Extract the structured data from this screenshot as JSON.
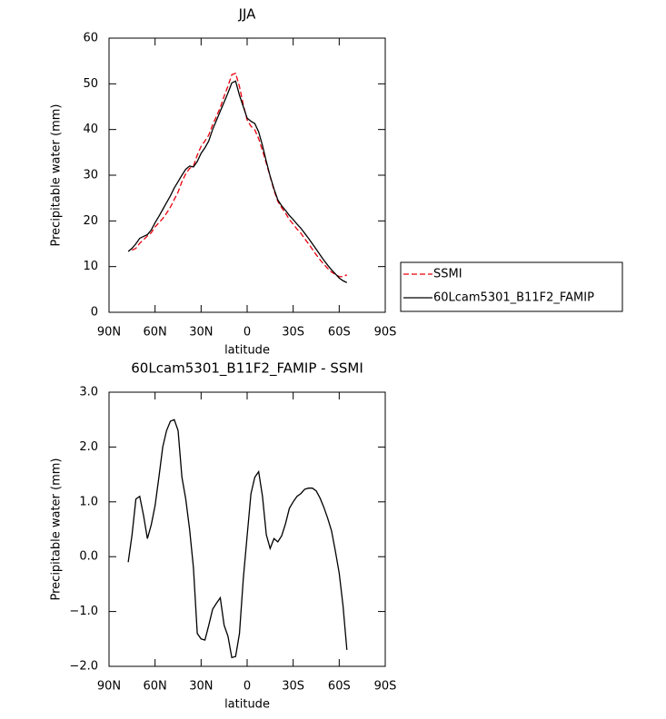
{
  "chart_data": [
    {
      "type": "line",
      "title": "JJA",
      "xlabel": "latitude",
      "ylabel": "Precipitable water (mm)",
      "x": [
        77.5,
        75,
        72.5,
        70,
        67.5,
        65,
        62.5,
        60,
        57.5,
        55,
        52.5,
        50,
        47.5,
        45,
        42.5,
        40,
        37.5,
        35,
        32.5,
        30,
        27.5,
        25,
        22.5,
        20,
        17.5,
        15,
        12.5,
        10,
        7.5,
        5,
        2.5,
        0,
        -2.5,
        -5,
        -7.5,
        -10,
        -12.5,
        -15,
        -17.5,
        -20,
        -22.5,
        -25,
        -27.5,
        -30,
        -32.5,
        -35,
        -37.5,
        -40,
        -42.5,
        -45,
        -47.5,
        -50,
        -52.5,
        -55,
        -57.5,
        -60,
        -62.5,
        -65
      ],
      "xlim": [
        90,
        -90
      ],
      "xticks": [
        {
          "value": 90,
          "label": "90N"
        },
        {
          "value": 60,
          "label": "60N"
        },
        {
          "value": 30,
          "label": "30N"
        },
        0,
        {
          "value": -30,
          "label": "30S"
        },
        {
          "value": -60,
          "label": "60S"
        },
        {
          "value": -90,
          "label": "90S"
        }
      ],
      "ylim": [
        0,
        60
      ],
      "yticks": [
        0,
        10,
        20,
        30,
        40,
        50,
        60
      ],
      "legend": "outside-right",
      "series": [
        {
          "name": "SSMI",
          "color": "#e8000b",
          "line_style": "dashed",
          "values": [
            null,
            13.6,
            14.0,
            15.1,
            15.9,
            16.7,
            17.4,
            18.7,
            19.6,
            20.5,
            21.7,
            23.0,
            24.7,
            26.3,
            28.6,
            30.3,
            31.5,
            32.0,
            34.4,
            36.3,
            37.5,
            38.8,
            41.0,
            42.9,
            44.8,
            47.3,
            49.5,
            52.0,
            52.3,
            49.4,
            45.4,
            42.1,
            40.7,
            39.9,
            38.0,
            35.4,
            32.6,
            29.7,
            26.7,
            24.3,
            22.9,
            21.7,
            20.3,
            19.3,
            18.2,
            17.3,
            16.1,
            15.0,
            13.8,
            12.6,
            11.5,
            10.5,
            9.6,
            8.8,
            8.3,
            7.8,
            7.8,
            8.2
          ]
        },
        {
          "name": "60Lcam5301_B11F2_FAMIP",
          "color": "#000000",
          "line_style": "solid",
          "values": [
            13.3,
            14.0,
            15.0,
            16.2,
            16.6,
            17.0,
            18.0,
            19.6,
            21.0,
            22.5,
            24.0,
            25.5,
            27.2,
            28.6,
            30.0,
            31.3,
            32.0,
            31.8,
            33.0,
            34.8,
            36.0,
            37.5,
            40.0,
            42.0,
            44.0,
            46.0,
            48.0,
            50.2,
            50.6,
            47.5,
            45.0,
            42.5,
            41.8,
            41.3,
            39.5,
            36.5,
            33.0,
            29.8,
            27.0,
            24.6,
            23.3,
            22.3,
            21.2,
            20.3,
            19.3,
            18.4,
            17.3,
            16.2,
            15.0,
            13.8,
            12.6,
            11.4,
            10.3,
            9.3,
            8.4,
            7.5,
            6.9,
            6.5
          ]
        }
      ]
    },
    {
      "type": "line",
      "title": "60Lcam5301_B11F2_FAMIP - SSMI",
      "xlabel": "latitude",
      "ylabel": "Precipitable water (mm)",
      "x": [
        77.5,
        75,
        72.5,
        70,
        67.5,
        65,
        62.5,
        60,
        57.5,
        55,
        52.5,
        50,
        47.5,
        45,
        42.5,
        40,
        37.5,
        35,
        32.5,
        30,
        27.5,
        25,
        22.5,
        20,
        17.5,
        15,
        12.5,
        10,
        7.5,
        5,
        2.5,
        0,
        -2.5,
        -5,
        -7.5,
        -10,
        -12.5,
        -15,
        -17.5,
        -20,
        -22.5,
        -25,
        -27.5,
        -30,
        -32.5,
        -35,
        -37.5,
        -40,
        -42.5,
        -45,
        -47.5,
        -50,
        -52.5,
        -55,
        -57.5,
        -60,
        -62.5,
        -65
      ],
      "xlim": [
        90,
        -90
      ],
      "xticks": [
        {
          "value": 90,
          "label": "90N"
        },
        {
          "value": 60,
          "label": "60N"
        },
        {
          "value": 30,
          "label": "30N"
        },
        0,
        {
          "value": -30,
          "label": "30S"
        },
        {
          "value": -60,
          "label": "60S"
        },
        {
          "value": -90,
          "label": "90S"
        }
      ],
      "ylim": [
        -2,
        3
      ],
      "yticks": [
        {
          "value": -2,
          "label": "−2.0"
        },
        {
          "value": -1,
          "label": "−1.0"
        },
        {
          "value": 0,
          "label": "0.0"
        },
        {
          "value": 1,
          "label": "1.0"
        },
        {
          "value": 2,
          "label": "2.0"
        },
        {
          "value": 3,
          "label": "3.0"
        }
      ],
      "color": "#000000",
      "values": [
        -0.1,
        0.4,
        1.05,
        1.1,
        0.75,
        0.33,
        0.58,
        0.93,
        1.45,
        2.0,
        2.3,
        2.47,
        2.5,
        2.3,
        1.45,
        1.05,
        0.5,
        -0.2,
        -1.4,
        -1.5,
        -1.52,
        -1.25,
        -0.96,
        -0.85,
        -0.75,
        -1.25,
        -1.45,
        -1.84,
        -1.82,
        -1.4,
        -0.4,
        0.38,
        1.15,
        1.45,
        1.55,
        1.1,
        0.4,
        0.15,
        0.33,
        0.27,
        0.38,
        0.6,
        0.88,
        1.0,
        1.1,
        1.15,
        1.23,
        1.25,
        1.25,
        1.2,
        1.07,
        0.9,
        0.7,
        0.47,
        0.1,
        -0.3,
        -0.9,
        -1.7
      ]
    }
  ]
}
